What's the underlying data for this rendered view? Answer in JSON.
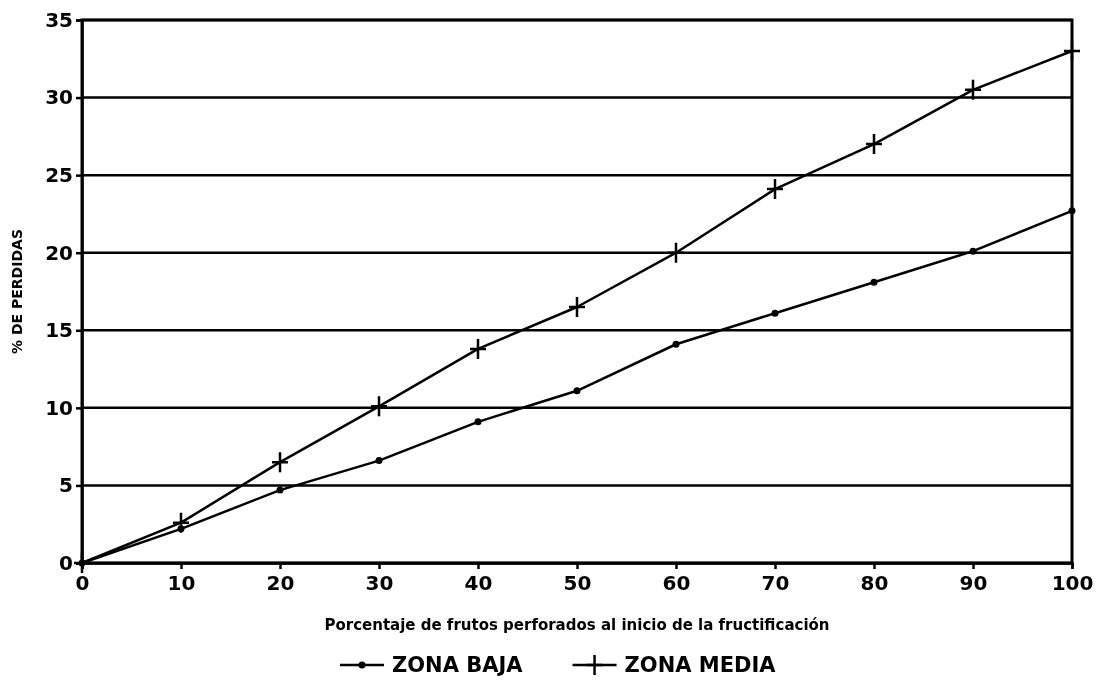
{
  "chart_data": {
    "type": "line",
    "xlabel": "Porcentaje de frutos perforados al inicio de la fructificación",
    "ylabel": "% DE PERDIDAS",
    "x": [
      0,
      10,
      20,
      30,
      40,
      50,
      60,
      70,
      80,
      90,
      100
    ],
    "series": [
      {
        "name": "ZONA BAJA",
        "color": "#000000",
        "marker": "circle",
        "values": [
          0,
          2.2,
          4.7,
          6.6,
          9.1,
          11.1,
          14.1,
          16.1,
          18.1,
          20.1,
          22.7
        ]
      },
      {
        "name": "ZONA MEDIA",
        "color": "#000000",
        "marker": "cross",
        "values": [
          0,
          2.6,
          6.5,
          10.1,
          13.8,
          16.5,
          20,
          24.1,
          27,
          30.5,
          33
        ]
      }
    ],
    "xlim": [
      0,
      100
    ],
    "xticks": [
      0,
      10,
      20,
      30,
      40,
      50,
      60,
      70,
      80,
      90,
      100
    ],
    "ylim": [
      0,
      35
    ],
    "yticks": [
      0,
      5,
      10,
      15,
      20,
      25,
      30,
      35
    ],
    "grid": "y",
    "legend": "bottom",
    "line_style": "solid"
  }
}
